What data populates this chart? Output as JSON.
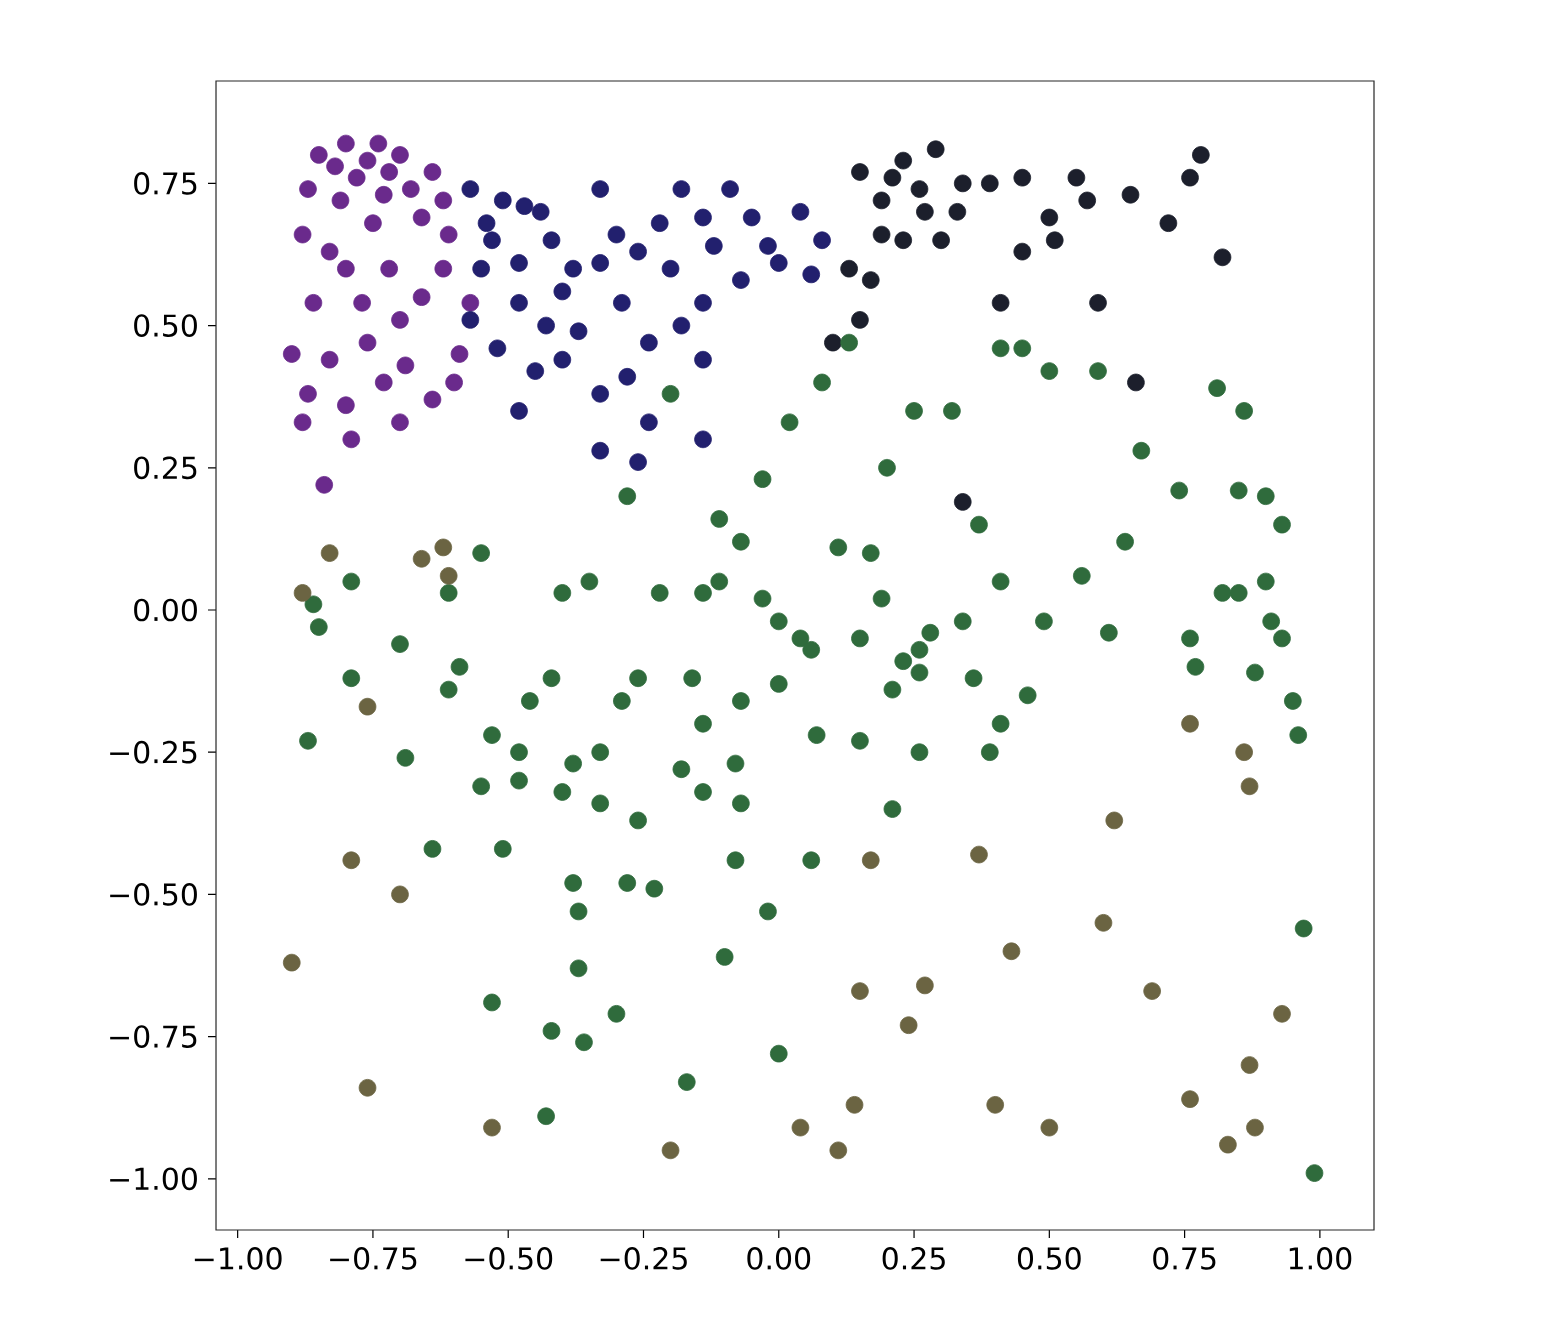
{
  "chart_data": {
    "type": "scatter",
    "marker": "circle",
    "xlim": [
      -1.04,
      1.1
    ],
    "ylim": [
      -1.09,
      0.93
    ],
    "xticks": [
      {
        "value": -1.0,
        "label": "−1.00"
      },
      {
        "value": -0.75,
        "label": "−0.75"
      },
      {
        "value": -0.5,
        "label": "−0.50"
      },
      {
        "value": -0.25,
        "label": "−0.25"
      },
      {
        "value": 0.0,
        "label": "0.00"
      },
      {
        "value": 0.25,
        "label": "0.25"
      },
      {
        "value": 0.5,
        "label": "0.50"
      },
      {
        "value": 0.75,
        "label": "0.75"
      },
      {
        "value": 1.0,
        "label": "1.00"
      }
    ],
    "yticks": [
      {
        "value": -1.0,
        "label": "−1.00"
      },
      {
        "value": -0.75,
        "label": "−0.75"
      },
      {
        "value": -0.5,
        "label": "−0.50"
      },
      {
        "value": -0.25,
        "label": "−0.25"
      },
      {
        "value": 0.0,
        "label": "0.00"
      },
      {
        "value": 0.25,
        "label": "0.25"
      },
      {
        "value": 0.5,
        "label": "0.50"
      },
      {
        "value": 0.75,
        "label": "0.75"
      }
    ],
    "series": [
      {
        "color": "#6a2a8c",
        "x": [
          -0.87,
          -0.85,
          -0.8,
          -0.74,
          -0.7,
          -0.81,
          -0.73,
          -0.64,
          -0.66,
          -0.61,
          -0.83,
          -0.86,
          -0.77,
          -0.7,
          -0.83,
          -0.73,
          -0.64,
          -0.88,
          -0.79,
          -0.59,
          -0.88,
          -0.57,
          -0.78,
          -0.68,
          -0.9,
          -0.84,
          -0.82,
          -0.76,
          -0.72,
          -0.62,
          -0.75,
          -0.8,
          -0.72,
          -0.66,
          -0.62,
          -0.76,
          -0.69,
          -0.6,
          -0.87,
          -0.8,
          -0.7
        ],
        "values": [
          0.74,
          0.8,
          0.82,
          0.82,
          0.8,
          0.72,
          0.73,
          0.77,
          0.69,
          0.66,
          0.63,
          0.54,
          0.54,
          0.51,
          0.44,
          0.4,
          0.37,
          0.33,
          0.3,
          0.45,
          0.66,
          0.54,
          0.76,
          0.74,
          0.45,
          0.22,
          0.78,
          0.79,
          0.77,
          0.72,
          0.68,
          0.6,
          0.6,
          0.55,
          0.6,
          0.47,
          0.43,
          0.4,
          0.38,
          0.36,
          0.33
        ]
      },
      {
        "color": "#22206e",
        "x": [
          -0.57,
          -0.51,
          -0.47,
          -0.53,
          -0.48,
          -0.42,
          -0.4,
          -0.48,
          -0.57,
          -0.33,
          -0.33,
          -0.26,
          -0.18,
          -0.09,
          -0.14,
          -0.05,
          -0.22,
          -0.29,
          -0.37,
          -0.4,
          -0.48,
          -0.33,
          -0.24,
          -0.14,
          -0.07,
          0.0,
          0.04,
          0.08,
          -0.14,
          -0.24,
          -0.26,
          -0.14,
          -0.33,
          -0.55,
          -0.45,
          -0.54,
          -0.44,
          -0.38,
          -0.3,
          -0.2,
          -0.12,
          -0.02,
          0.06,
          -0.18,
          -0.28,
          -0.43,
          -0.52
        ],
        "values": [
          0.74,
          0.72,
          0.71,
          0.65,
          0.61,
          0.65,
          0.56,
          0.54,
          0.51,
          0.74,
          0.61,
          0.63,
          0.74,
          0.74,
          0.69,
          0.69,
          0.68,
          0.54,
          0.49,
          0.44,
          0.35,
          0.38,
          0.47,
          0.54,
          0.58,
          0.61,
          0.7,
          0.65,
          0.44,
          0.33,
          0.26,
          0.3,
          0.28,
          0.6,
          0.42,
          0.68,
          0.7,
          0.6,
          0.66,
          0.6,
          0.64,
          0.64,
          0.59,
          0.5,
          0.41,
          0.5,
          0.46
        ]
      },
      {
        "color": "#1c1f2c",
        "x": [
          0.15,
          0.23,
          0.29,
          0.19,
          0.26,
          0.34,
          0.39,
          0.23,
          0.3,
          0.17,
          0.15,
          0.1,
          0.65,
          0.76,
          0.5,
          0.45,
          0.51,
          0.72,
          0.82,
          0.34,
          0.41,
          0.59,
          0.78,
          0.57,
          0.66,
          0.21,
          0.33,
          0.27,
          0.19,
          0.13,
          0.45,
          0.55
        ],
        "values": [
          0.77,
          0.79,
          0.81,
          0.72,
          0.74,
          0.75,
          0.75,
          0.65,
          0.65,
          0.58,
          0.51,
          0.47,
          0.73,
          0.76,
          0.69,
          0.63,
          0.65,
          0.68,
          0.62,
          0.19,
          0.54,
          0.54,
          0.8,
          0.72,
          0.4,
          0.76,
          0.7,
          0.7,
          0.66,
          0.6,
          0.76,
          0.76
        ]
      },
      {
        "color": "#2f6b3c",
        "x": [
          -0.11,
          -0.03,
          -0.14,
          -0.22,
          0.0,
          0.04,
          -0.07,
          -0.03,
          0.02,
          0.08,
          0.13,
          -0.11,
          0.06,
          0.41,
          0.45,
          0.5,
          0.59,
          0.25,
          0.32,
          0.81,
          0.86,
          0.67,
          0.74,
          0.85,
          0.9,
          0.93,
          0.64,
          0.56,
          0.41,
          0.82,
          0.85,
          0.9,
          0.91,
          0.76,
          0.61,
          0.49,
          0.34,
          0.28,
          0.15,
          0.26,
          0.19,
          0.11,
          0.17,
          0.37,
          0.46,
          0.41,
          0.39,
          0.36,
          0.26,
          0.21,
          0.23,
          0.15,
          0.26,
          0.07,
          0.0,
          -0.07,
          -0.08,
          -0.16,
          -0.14,
          -0.26,
          -0.29,
          -0.33,
          -0.38,
          -0.48,
          -0.53,
          -0.46,
          -0.42,
          -0.59,
          -0.61,
          -0.7,
          -0.79,
          -0.61,
          -0.4,
          -0.35,
          -0.48,
          -0.4,
          -0.55,
          -0.64,
          -0.51,
          -0.38,
          -0.37,
          -0.37,
          -0.28,
          -0.23,
          -0.26,
          -0.33,
          -0.18,
          -0.14,
          -0.07,
          -0.08,
          -0.02,
          -0.1,
          0.06,
          0.21,
          0.96,
          0.95,
          0.88,
          0.77,
          0.93,
          0.97,
          -0.53,
          -0.42,
          -0.36,
          -0.3,
          0.0,
          -0.17,
          -0.43,
          -0.86,
          -0.85,
          -0.79,
          -0.87,
          -0.69,
          -0.55,
          -0.28,
          0.2,
          -0.2,
          0.99
        ],
        "values": [
          0.05,
          0.02,
          0.03,
          0.03,
          -0.02,
          -0.05,
          0.12,
          0.23,
          0.33,
          0.4,
          0.47,
          0.16,
          -0.07,
          0.46,
          0.46,
          0.42,
          0.42,
          0.35,
          0.35,
          0.39,
          0.35,
          0.28,
          0.21,
          0.21,
          0.2,
          0.15,
          0.12,
          0.06,
          0.05,
          0.03,
          0.03,
          0.05,
          -0.02,
          -0.05,
          -0.04,
          -0.02,
          -0.02,
          -0.04,
          -0.05,
          -0.07,
          0.02,
          0.11,
          0.1,
          0.15,
          -0.15,
          -0.2,
          -0.25,
          -0.12,
          -0.11,
          -0.14,
          -0.09,
          -0.23,
          -0.25,
          -0.22,
          -0.13,
          -0.16,
          -0.27,
          -0.12,
          -0.2,
          -0.12,
          -0.16,
          -0.25,
          -0.27,
          -0.25,
          -0.22,
          -0.16,
          -0.12,
          -0.1,
          -0.14,
          -0.06,
          0.05,
          0.03,
          0.03,
          0.05,
          -0.3,
          -0.32,
          -0.31,
          -0.42,
          -0.42,
          -0.48,
          -0.53,
          -0.63,
          -0.48,
          -0.49,
          -0.37,
          -0.34,
          -0.28,
          -0.32,
          -0.34,
          -0.44,
          -0.53,
          -0.61,
          -0.44,
          -0.35,
          -0.22,
          -0.16,
          -0.11,
          -0.1,
          -0.05,
          -0.56,
          -0.69,
          -0.74,
          -0.76,
          -0.71,
          -0.78,
          -0.83,
          -0.89,
          0.01,
          -0.03,
          -0.12,
          -0.23,
          -0.26,
          0.1,
          0.2,
          0.25,
          0.38,
          -0.99
        ]
      },
      {
        "color": "#6b6442",
        "x": [
          -0.83,
          -0.62,
          -0.61,
          -0.66,
          -0.76,
          -0.79,
          -0.9,
          -0.76,
          -0.53,
          0.15,
          0.27,
          0.24,
          0.43,
          0.37,
          0.62,
          0.76,
          0.86,
          0.87,
          0.93,
          0.87,
          0.76,
          0.88,
          0.83,
          0.5,
          0.4,
          0.14,
          0.04,
          0.11,
          0.69,
          0.17,
          -0.88,
          -0.7,
          0.6,
          -0.2
        ],
        "values": [
          0.1,
          0.11,
          0.06,
          0.09,
          -0.17,
          -0.44,
          -0.62,
          -0.84,
          -0.91,
          -0.67,
          -0.66,
          -0.73,
          -0.6,
          -0.43,
          -0.37,
          -0.2,
          -0.25,
          -0.31,
          -0.71,
          -0.8,
          -0.86,
          -0.91,
          -0.94,
          -0.91,
          -0.87,
          -0.87,
          -0.91,
          -0.95,
          -0.67,
          -0.44,
          0.03,
          -0.5,
          -0.55,
          -0.95
        ]
      }
    ]
  }
}
